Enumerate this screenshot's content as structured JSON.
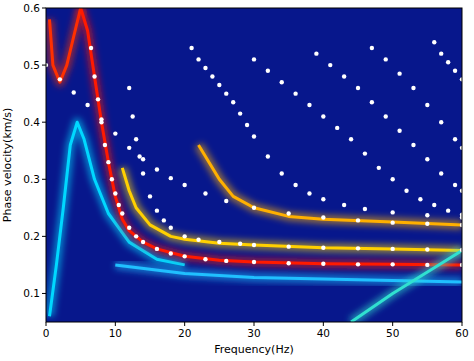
{
  "chart_data": {
    "type": "scatter",
    "x_label": "Frequency(Hz)",
    "y_label": "Phase velocity(km/s)",
    "xlim": [
      0,
      60
    ],
    "ylim": [
      0.05,
      0.6
    ],
    "xticks": [
      0,
      10,
      20,
      30,
      40,
      50,
      60
    ],
    "yticks": [
      0.1,
      0.2,
      0.3,
      0.4,
      0.5,
      0.6
    ],
    "grid": false,
    "series": [
      {
        "type": "line",
        "line_style": "solid",
        "color": "#ff3000",
        "x": [
          0.5,
          1,
          2,
          3,
          4,
          5
        ],
        "values": [
          0.58,
          0.5,
          0.47,
          0.5,
          0.55,
          0.6
        ]
      },
      {
        "type": "line",
        "line_style": "solid",
        "color": "#00d8ff",
        "x": [
          0.5,
          1.5,
          2.5,
          3.5,
          4.5,
          5.5,
          7,
          9,
          12,
          16,
          20
        ],
        "values": [
          0.06,
          0.15,
          0.25,
          0.36,
          0.4,
          0.37,
          0.3,
          0.24,
          0.19,
          0.16,
          0.15
        ]
      },
      {
        "type": "line",
        "line_style": "solid",
        "color": "#ff1a00",
        "x": [
          5,
          6,
          7,
          8,
          9,
          10,
          11,
          12,
          14,
          16,
          20,
          25,
          30,
          40,
          50,
          60
        ],
        "values": [
          0.6,
          0.56,
          0.48,
          0.4,
          0.33,
          0.27,
          0.23,
          0.21,
          0.19,
          0.178,
          0.165,
          0.158,
          0.155,
          0.152,
          0.151,
          0.15
        ]
      },
      {
        "type": "line",
        "line_style": "solid",
        "color": "#ffd000",
        "x": [
          11,
          12,
          13,
          15,
          18,
          20,
          25,
          30,
          40,
          50,
          60
        ],
        "values": [
          0.32,
          0.28,
          0.25,
          0.22,
          0.2,
          0.195,
          0.188,
          0.185,
          0.18,
          0.178,
          0.175
        ]
      },
      {
        "type": "line",
        "line_style": "solid",
        "color": "#ffb000",
        "x": [
          22,
          25,
          27,
          30,
          35,
          40,
          50,
          60
        ],
        "values": [
          0.36,
          0.3,
          0.27,
          0.25,
          0.235,
          0.23,
          0.225,
          0.22
        ]
      },
      {
        "type": "line",
        "line_style": "solid",
        "color": "#20c0ff",
        "x": [
          10,
          20,
          30,
          45,
          60
        ],
        "values": [
          0.15,
          0.135,
          0.128,
          0.124,
          0.12
        ]
      },
      {
        "type": "line",
        "line_style": "solid",
        "color": "#30e0d0",
        "x": [
          44,
          50,
          56,
          60
        ],
        "values": [
          0.05,
          0.1,
          0.145,
          0.175
        ]
      },
      {
        "type": "scatter",
        "marker": "circle",
        "color": "#ffffff",
        "x": [
          0,
          2,
          4,
          6,
          8,
          10,
          12,
          14,
          16,
          18,
          20,
          23,
          26,
          30,
          35,
          40,
          45,
          50,
          55,
          60
        ],
        "values": [
          0.5,
          0.475,
          0.452,
          0.43,
          0.405,
          0.38,
          0.355,
          0.335,
          0.317,
          0.302,
          0.29,
          0.275,
          0.262,
          0.25,
          0.24,
          0.233,
          0.228,
          0.224,
          0.222,
          0.22
        ]
      },
      {
        "type": "scatter",
        "marker": "circle",
        "color": "#ffffff",
        "x": [
          6.5,
          7,
          7.5,
          8,
          8.5,
          9,
          9.5,
          10,
          10.5,
          11,
          12,
          13,
          14,
          16,
          18,
          20,
          23,
          26,
          30,
          35,
          40,
          45,
          50,
          55,
          60
        ],
        "values": [
          0.53,
          0.48,
          0.44,
          0.4,
          0.36,
          0.33,
          0.3,
          0.275,
          0.255,
          0.24,
          0.215,
          0.2,
          0.19,
          0.178,
          0.17,
          0.165,
          0.16,
          0.157,
          0.155,
          0.153,
          0.152,
          0.151,
          0.151,
          0.15,
          0.15
        ]
      },
      {
        "type": "scatter",
        "marker": "circle",
        "color": "#ffffff",
        "x": [
          12,
          12.5,
          13,
          13.5,
          14,
          15,
          16,
          17,
          18,
          20,
          22,
          25,
          28,
          30,
          35,
          40,
          45,
          50,
          55,
          60
        ],
        "values": [
          0.46,
          0.41,
          0.37,
          0.34,
          0.31,
          0.27,
          0.245,
          0.228,
          0.215,
          0.2,
          0.194,
          0.19,
          0.187,
          0.185,
          0.182,
          0.18,
          0.179,
          0.178,
          0.177,
          0.176
        ]
      },
      {
        "type": "scatter",
        "marker": "circle",
        "color": "#ffffff",
        "x": [
          21,
          22,
          23,
          24,
          25,
          26,
          27,
          28,
          29,
          30,
          32,
          34,
          36,
          38,
          40,
          43,
          46,
          50,
          55,
          60
        ],
        "values": [
          0.53,
          0.51,
          0.495,
          0.48,
          0.465,
          0.45,
          0.435,
          0.415,
          0.395,
          0.375,
          0.34,
          0.31,
          0.29,
          0.275,
          0.265,
          0.255,
          0.248,
          0.242,
          0.237,
          0.233
        ]
      },
      {
        "type": "scatter",
        "marker": "circle",
        "color": "#ffffff",
        "x": [
          30,
          32,
          34,
          36,
          38,
          40,
          42,
          44,
          46,
          48,
          50,
          52,
          54,
          56,
          58,
          60
        ],
        "values": [
          0.51,
          0.49,
          0.47,
          0.45,
          0.43,
          0.41,
          0.39,
          0.37,
          0.345,
          0.32,
          0.3,
          0.28,
          0.265,
          0.255,
          0.245,
          0.238
        ]
      },
      {
        "type": "scatter",
        "marker": "circle",
        "color": "#ffffff",
        "x": [
          39,
          41,
          43,
          45,
          47,
          49,
          51,
          53,
          55,
          57,
          59,
          60
        ],
        "values": [
          0.52,
          0.5,
          0.48,
          0.46,
          0.435,
          0.41,
          0.385,
          0.36,
          0.335,
          0.31,
          0.29,
          0.28
        ]
      },
      {
        "type": "scatter",
        "marker": "circle",
        "color": "#ffffff",
        "x": [
          47,
          49,
          51,
          53,
          55,
          57,
          59,
          60
        ],
        "values": [
          0.53,
          0.51,
          0.485,
          0.46,
          0.43,
          0.4,
          0.37,
          0.355
        ]
      },
      {
        "type": "scatter",
        "marker": "circle",
        "color": "#ffffff",
        "x": [
          56,
          57,
          58,
          59,
          60
        ],
        "values": [
          0.54,
          0.52,
          0.505,
          0.49,
          0.475
        ]
      }
    ]
  }
}
